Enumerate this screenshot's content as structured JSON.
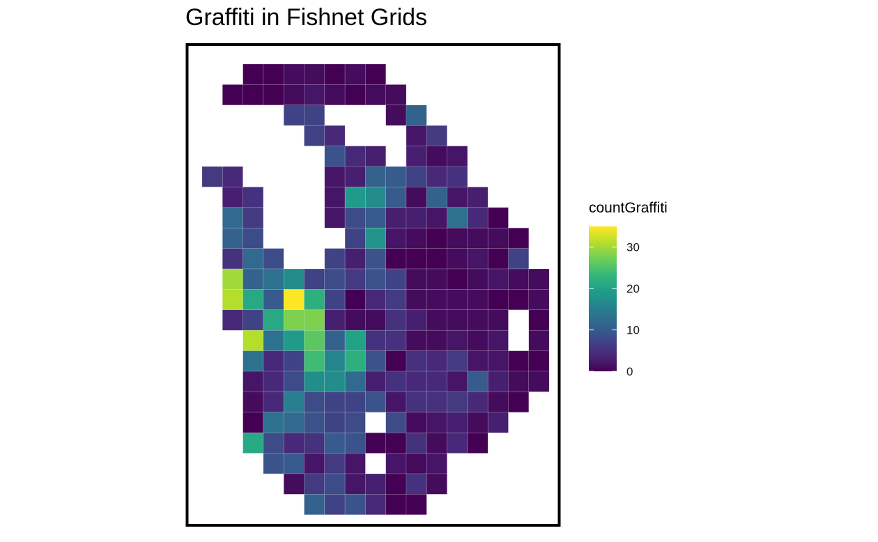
{
  "chart_data": {
    "type": "heatmap",
    "title": "Graffiti in Fishnet Grids",
    "legend": {
      "title": "countGraffiti",
      "ticks": [
        0,
        10,
        20,
        30
      ],
      "range": [
        0,
        35
      ],
      "placement": "right",
      "colormap": "viridis"
    },
    "grid": false,
    "cell_rows": [
      {
        "row": 0,
        "start_col": 2,
        "values": [
          0,
          0,
          1,
          1,
          0,
          1,
          0
        ]
      },
      {
        "row": 1,
        "start_col": 1,
        "values": [
          0,
          0,
          0,
          1,
          2,
          1,
          0,
          1,
          1
        ]
      },
      {
        "row": 2,
        "start_col": 4,
        "values": [
          7,
          7,
          null,
          null,
          null,
          1,
          11
        ]
      },
      {
        "row": 3,
        "start_col": 5,
        "values": [
          7,
          4,
          null,
          null,
          null,
          2,
          6
        ]
      },
      {
        "row": 4,
        "start_col": 6,
        "values": [
          9,
          4,
          3,
          null,
          3,
          1,
          2
        ]
      },
      {
        "row": 5,
        "start_col": 0,
        "values": [
          6,
          4,
          null,
          null,
          null,
          null,
          2,
          3,
          11,
          10,
          7,
          4,
          5
        ]
      },
      {
        "row": 6,
        "start_col": 1,
        "values": [
          3,
          5,
          null,
          null,
          null,
          2,
          19,
          17,
          10,
          1,
          11,
          2,
          3
        ]
      },
      {
        "row": 7,
        "start_col": 1,
        "values": [
          12,
          6,
          null,
          null,
          null,
          2,
          8,
          10,
          3,
          3,
          2,
          13,
          4,
          0
        ]
      },
      {
        "row": 8,
        "start_col": 1,
        "values": [
          11,
          8,
          null,
          null,
          null,
          null,
          7,
          18,
          2,
          1,
          0,
          1,
          1,
          1,
          0
        ]
      },
      {
        "row": 9,
        "start_col": 1,
        "values": [
          5,
          12,
          8,
          null,
          null,
          7,
          3,
          9,
          0,
          0,
          0,
          1,
          2,
          0,
          7
        ]
      },
      {
        "row": 10,
        "start_col": 1,
        "values": [
          30,
          11,
          13,
          17,
          7,
          8,
          6,
          9,
          7,
          1,
          1,
          0,
          1,
          2,
          1,
          1
        ]
      },
      {
        "row": 11,
        "start_col": 1,
        "values": [
          31,
          21,
          10,
          35,
          22,
          7,
          0,
          4,
          6,
          1,
          1,
          1,
          1,
          0,
          0,
          1
        ]
      },
      {
        "row": 12,
        "start_col": 1,
        "values": [
          4,
          7,
          21,
          28,
          28,
          3,
          1,
          1,
          5,
          3,
          1,
          1,
          1,
          1,
          null,
          0
        ]
      },
      {
        "row": 13,
        "start_col": 2,
        "values": [
          31,
          13,
          19,
          26,
          11,
          20,
          5,
          5,
          1,
          1,
          2,
          1,
          2,
          null,
          1
        ]
      },
      {
        "row": 14,
        "start_col": 2,
        "values": [
          13,
          4,
          7,
          24,
          16,
          22,
          9,
          0,
          5,
          4,
          6,
          2,
          2,
          0,
          0
        ]
      },
      {
        "row": 15,
        "start_col": 2,
        "values": [
          2,
          4,
          8,
          17,
          17,
          12,
          3,
          5,
          4,
          4,
          2,
          10,
          3,
          1,
          1
        ]
      },
      {
        "row": 16,
        "start_col": 2,
        "values": [
          1,
          4,
          15,
          8,
          7,
          7,
          9,
          2,
          5,
          5,
          6,
          4,
          1,
          0
        ]
      },
      {
        "row": 17,
        "start_col": 2,
        "values": [
          0,
          13,
          12,
          9,
          7,
          8,
          null,
          8,
          1,
          2,
          3,
          1,
          3
        ]
      },
      {
        "row": 18,
        "start_col": 2,
        "values": [
          21,
          8,
          4,
          5,
          10,
          9,
          0,
          0,
          5,
          1,
          4,
          0
        ]
      },
      {
        "row": 19,
        "start_col": 3,
        "values": [
          9,
          10,
          2,
          6,
          2,
          null,
          2,
          1,
          2
        ]
      },
      {
        "row": 20,
        "start_col": 4,
        "values": [
          1,
          6,
          8,
          2,
          3,
          0,
          5,
          1
        ]
      },
      {
        "row": 21,
        "start_col": 5,
        "values": [
          11,
          7,
          9,
          4,
          0,
          0
        ]
      }
    ]
  }
}
